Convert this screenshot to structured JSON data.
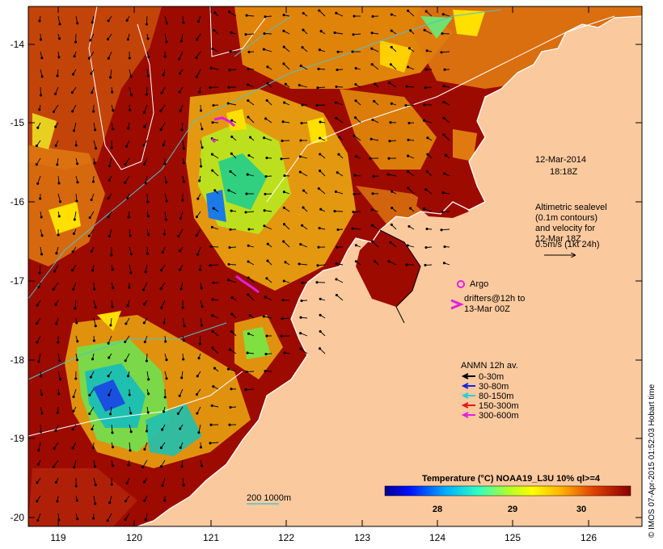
{
  "axes": {
    "y_ticks": [
      "-14",
      "-15",
      "-16",
      "-17",
      "-18",
      "-19",
      "-20"
    ],
    "x_ticks": [
      "119",
      "120",
      "121",
      "122",
      "123",
      "124",
      "125",
      "126"
    ]
  },
  "timestamp": {
    "date": "12-Mar-2014",
    "time": "18:18Z"
  },
  "altimetry_note": [
    "Altimetric sealevel",
    "(0.1m contours)",
    "and velocity for",
    "12-Mar 18Z",
    "0.5m/s (1kt 24h)"
  ],
  "argo_label": "Argo",
  "drifters_label": [
    "drifters@12h to",
    "13-Mar 00Z"
  ],
  "anmn": {
    "title": "ANMN 12h av.",
    "items": [
      {
        "label": "0-30m",
        "color": "#000000"
      },
      {
        "label": "30-80m",
        "color": "#1a22e0"
      },
      {
        "label": "80-150m",
        "color": "#22cfd6"
      },
      {
        "label": "150-300m",
        "color": "#e01818"
      },
      {
        "label": "300-600m",
        "color": "#e020e0"
      }
    ]
  },
  "colorbar": {
    "title": "Temperature (°C) NOAA19_L3U 10% ql>=4",
    "ticks": [
      "28",
      "29",
      "30"
    ]
  },
  "scale_label": "200  1000m",
  "side_credit": "© IMOS 07-Apr-2015 01:52:03 Hobart time",
  "colors": {
    "land": "#fbc99e",
    "sst_hot": "#9c0a00",
    "coast": "#ffffff",
    "contour": "#ffffff",
    "bathy": "#4fc4c4"
  }
}
